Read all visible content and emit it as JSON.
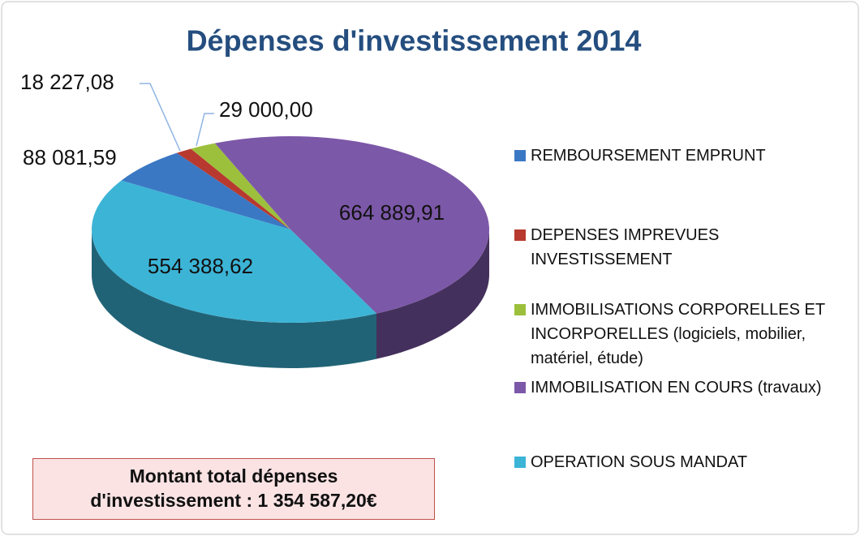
{
  "chart_data": {
    "type": "pie",
    "title": "Dépenses d'investissement 2014",
    "categories": [
      "REMBOURSEMENT EMPRUNT",
      "DEPENSES IMPREVUES INVESTISSEMENT",
      "IMMOBILISATIONS CORPORELLES ET INCORPORELLES (logiciels, mobilier, matériel, étude)",
      "IMMOBILISATION EN COURS (travaux)",
      "OPERATION SOUS MANDAT"
    ],
    "values": [
      88081.59,
      18227.08,
      29000.0,
      664889.91,
      554388.62
    ],
    "value_labels": [
      "88 081,59",
      "18 227,08",
      "29 000,00",
      "664 889,91",
      "554 388,62"
    ],
    "colors": [
      "#3b78c4",
      "#b8392f",
      "#9cc03c",
      "#7c58a8",
      "#3cb4d6"
    ],
    "legend": "right",
    "annotation": [
      "Montant total dépenses",
      "d'investissement  : 1 354 587,20€"
    ]
  }
}
